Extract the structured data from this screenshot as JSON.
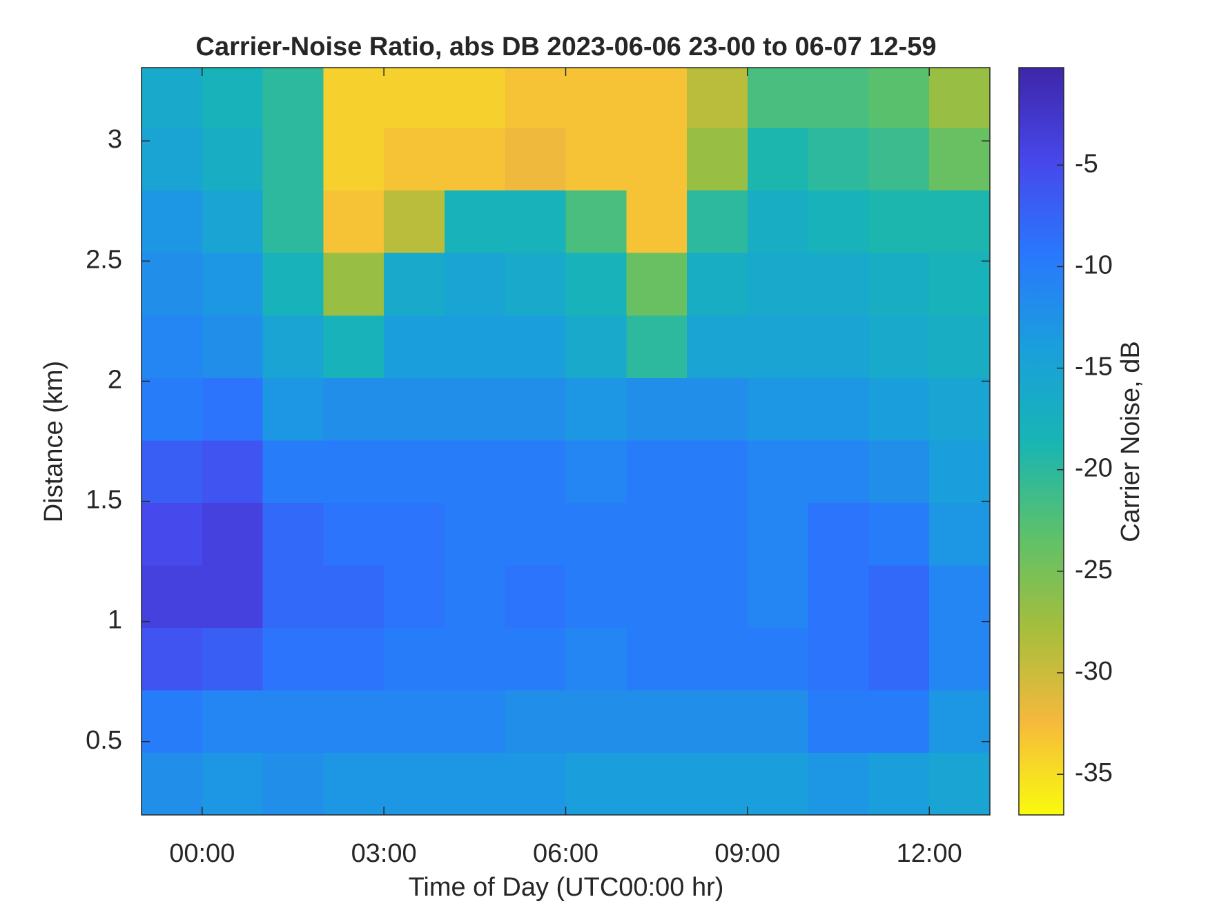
{
  "chart_data": {
    "type": "heatmap",
    "title": "Carrier-Noise Ratio, abs DB 2023-06-06 23-00 to 06-07 12-59",
    "x_label": "Time of Day (UTC00:00 hr)",
    "y_label": "Distance (km)",
    "colorbar_label": "Carrier Noise, dB",
    "x": [
      -0.5,
      0.5,
      1.5,
      2.5,
      3.5,
      4.5,
      5.5,
      6.5,
      7.5,
      8.5,
      9.5,
      10.5,
      11.5,
      12.5
    ],
    "y": [
      0.325,
      0.585,
      0.845,
      1.105,
      1.365,
      1.625,
      1.885,
      2.145,
      2.405,
      2.665,
      2.925,
      3.185
    ],
    "z": [
      [
        -12,
        -13,
        -12,
        -13,
        -13,
        -13,
        -13,
        -14,
        -14,
        -14,
        -14,
        -13,
        -14,
        -15
      ],
      [
        -10,
        -11,
        -11,
        -11,
        -11,
        -11,
        -12,
        -12,
        -12,
        -12,
        -12,
        -10,
        -10,
        -13
      ],
      [
        -6,
        -7,
        -9,
        -9,
        -10,
        -10,
        -10,
        -11,
        -10,
        -10,
        -10,
        -9,
        -8,
        -11
      ],
      [
        -4,
        -4,
        -8,
        -8,
        -9,
        -10,
        -9,
        -10,
        -10,
        -10,
        -11,
        -9,
        -8,
        -11
      ],
      [
        -5,
        -4,
        -8,
        -9,
        -9,
        -10,
        -10,
        -10,
        -10,
        -10,
        -11,
        -9,
        -10,
        -13
      ],
      [
        -7,
        -6,
        -10,
        -10,
        -10,
        -10,
        -10,
        -11,
        -10,
        -10,
        -11,
        -11,
        -12,
        -14
      ],
      [
        -10,
        -9,
        -13,
        -12,
        -12,
        -12,
        -12,
        -13,
        -12,
        -12,
        -13,
        -13,
        -14,
        -15
      ],
      [
        -11,
        -12,
        -15,
        -18,
        -14,
        -14,
        -14,
        -16,
        -20,
        -15,
        -15,
        -15,
        -16,
        -17
      ],
      [
        -12,
        -13,
        -18,
        -27,
        -16,
        -15,
        -16,
        -18,
        -24,
        -17,
        -16,
        -16,
        -17,
        -18
      ],
      [
        -13,
        -15,
        -20,
        -33,
        -29,
        -18,
        -18,
        -22,
        -33,
        -20,
        -17,
        -18,
        -19,
        -19
      ],
      [
        -15,
        -17,
        -20,
        -34,
        -33,
        -33,
        -32,
        -33,
        -33,
        -27,
        -19,
        -20,
        -21,
        -24
      ],
      [
        -16,
        -18,
        -20,
        -34,
        -34,
        -34,
        -33,
        -33,
        -33,
        -29,
        -22,
        -22,
        -23,
        -27
      ]
    ],
    "xlim": [
      -1,
      13
    ],
    "xticks": [
      {
        "value": 0,
        "label": "00:00"
      },
      {
        "value": 3,
        "label": "03:00"
      },
      {
        "value": 6,
        "label": "06:00"
      },
      {
        "value": 9,
        "label": "09:00"
      },
      {
        "value": 12,
        "label": "12:00"
      }
    ],
    "ylim": [
      0.195,
      3.305
    ],
    "yticks": [
      0.5,
      1,
      1.5,
      2,
      2.5,
      3
    ],
    "clim": [
      -37,
      -0.2
    ],
    "cticks": [
      -35,
      -30,
      -25,
      -20,
      -15,
      -10,
      -5
    ],
    "colormap": [
      "#f9fb0e",
      "#f5b93c",
      "#a5be3c",
      "#5cc16b",
      "#17b5b5",
      "#1a9fdc",
      "#2978fd",
      "#4747eb",
      "#3e26a8"
    ]
  }
}
